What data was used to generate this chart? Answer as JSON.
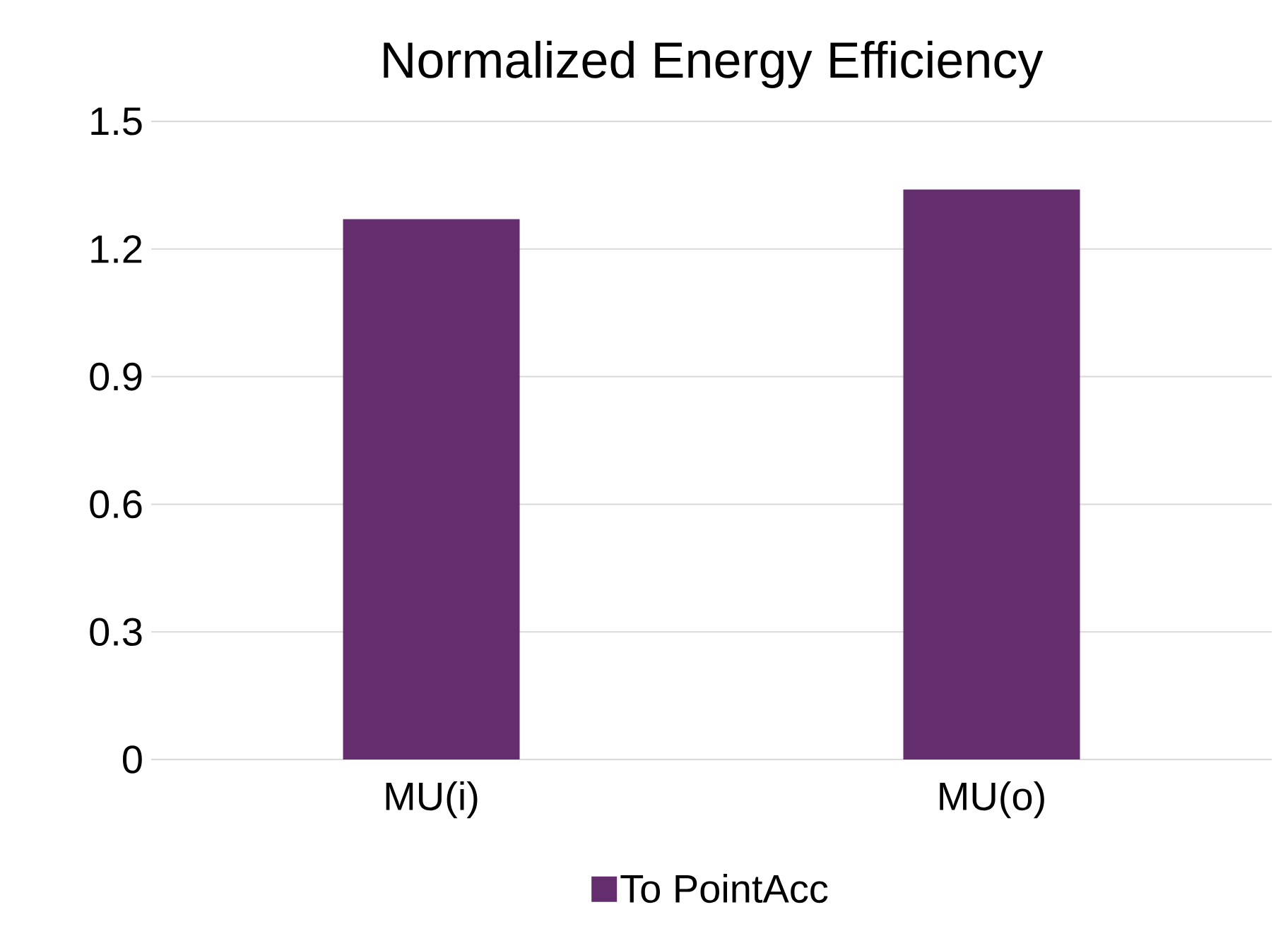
{
  "chart_data": {
    "type": "bar",
    "title": "Normalized Energy Efficiency",
    "categories": [
      "MU(i)",
      "MU(o)"
    ],
    "series": [
      {
        "name": "To PointAcc",
        "color": "#642d6e",
        "values": [
          1.27,
          1.34
        ]
      }
    ],
    "ylim": [
      0,
      1.5
    ],
    "yticks": [
      0,
      0.3,
      0.6,
      0.9,
      1.2,
      1.5
    ],
    "grid": "y",
    "legend": "bottom"
  }
}
